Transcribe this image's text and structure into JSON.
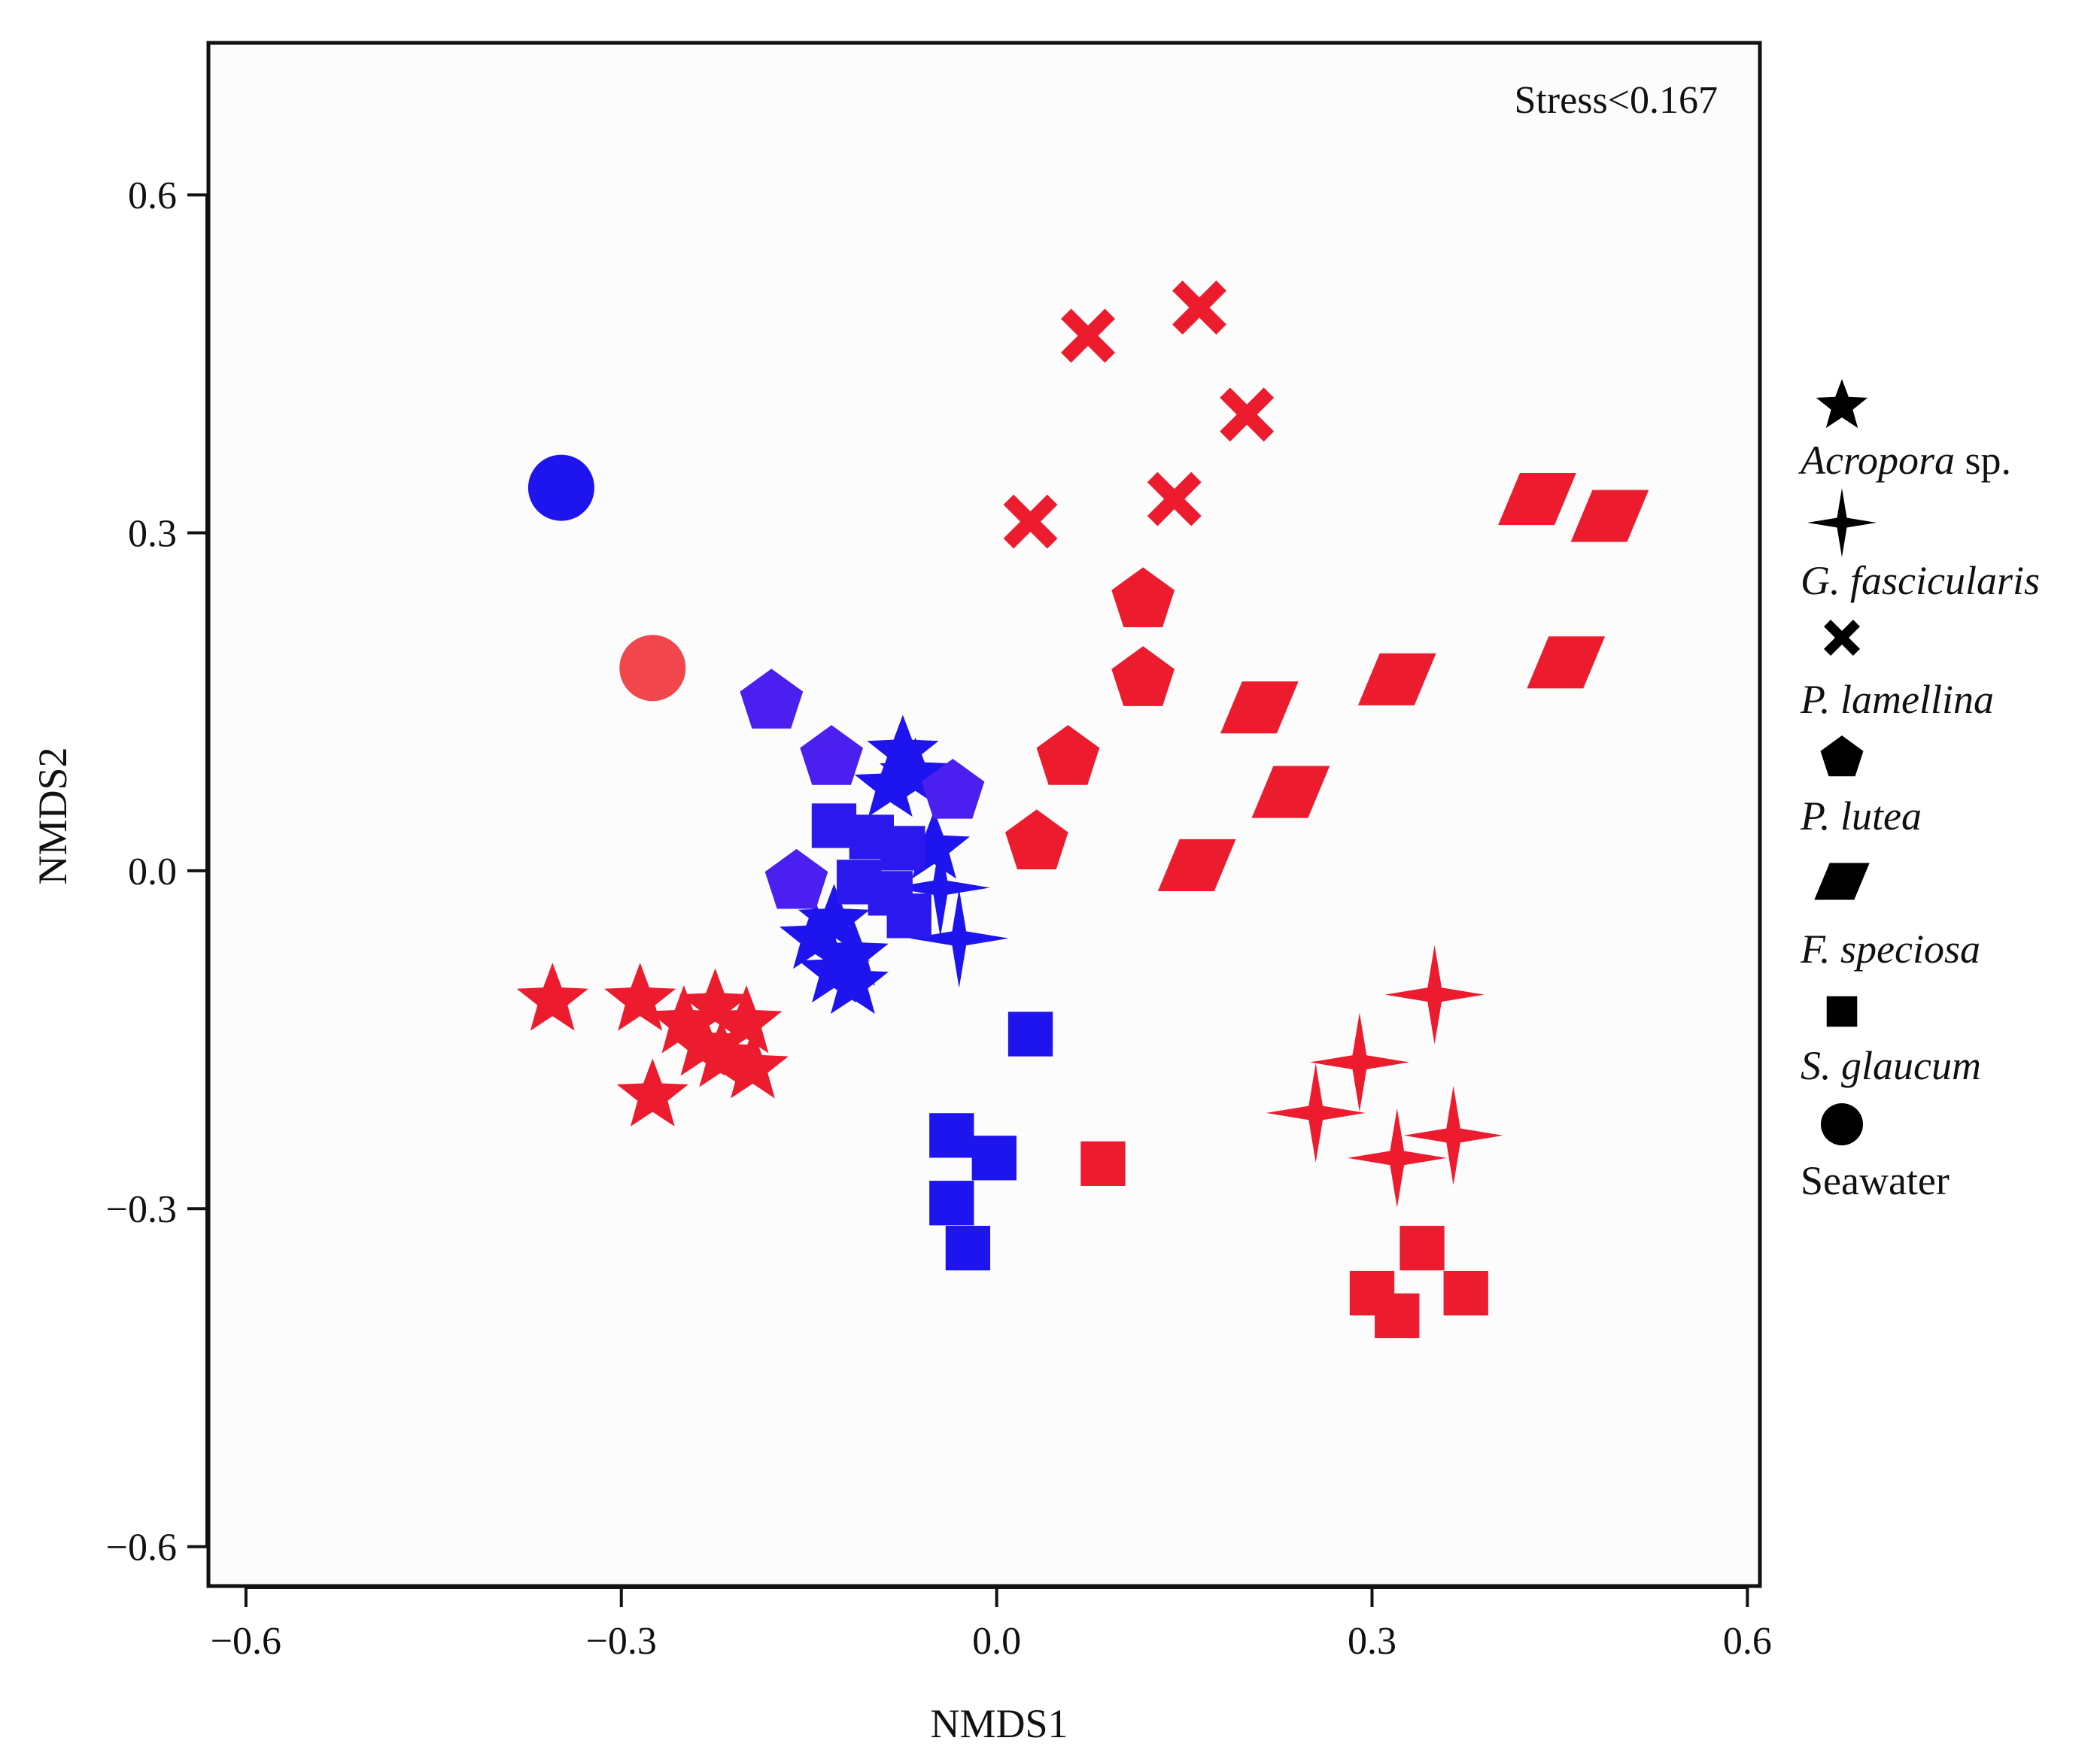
{
  "chart_data": {
    "type": "scatter",
    "title": "",
    "xlabel": "NMDS1",
    "ylabel": "NMDS2",
    "xlim": [
      -0.63,
      0.61
    ],
    "ylim": [
      -0.635,
      0.735
    ],
    "x_ticks": [
      -0.6,
      -0.3,
      0.0,
      0.3,
      0.6
    ],
    "y_ticks": [
      -0.6,
      -0.3,
      0.0,
      0.3,
      0.6
    ],
    "x_tick_labels": [
      "−0.6",
      "−0.3",
      "0.0",
      "0.3",
      "0.6"
    ],
    "y_tick_labels": [
      "−0.6",
      "−0.3",
      "0.0",
      "0.3",
      "0.6"
    ],
    "annotation": "Stress<0.167",
    "grid": false,
    "legend_position": "right",
    "colors": {
      "red": "#ec1c2e",
      "blue": "#1e14ee",
      "violet": "#4a1ff0",
      "light_red": "#f0464c"
    },
    "legend": [
      {
        "name_italic": "Acropora",
        "name_suffix": " sp.",
        "marker": "star5"
      },
      {
        "name_italic": "G. fascicularis",
        "name_suffix": "",
        "marker": "star4"
      },
      {
        "name_italic": "P. lamellina",
        "name_suffix": "",
        "marker": "cross"
      },
      {
        "name_italic": "P. lutea",
        "name_suffix": "",
        "marker": "pentagon"
      },
      {
        "name_italic": "F. speciosa",
        "name_suffix": "",
        "marker": "parallelogram"
      },
      {
        "name_italic": "S. glaucum",
        "name_suffix": "",
        "marker": "square"
      },
      {
        "name_italic": "",
        "name_suffix": "Seawater",
        "marker": "circle"
      }
    ],
    "series": [
      {
        "name": "Acropora sp.",
        "marker": "star5",
        "points": [
          {
            "x": -0.355,
            "y": -0.115,
            "color": "#ec1c2e"
          },
          {
            "x": -0.285,
            "y": -0.115,
            "color": "#ec1c2e"
          },
          {
            "x": -0.25,
            "y": -0.135,
            "color": "#ec1c2e"
          },
          {
            "x": -0.225,
            "y": -0.12,
            "color": "#ec1c2e"
          },
          {
            "x": -0.2,
            "y": -0.135,
            "color": "#ec1c2e"
          },
          {
            "x": -0.235,
            "y": -0.155,
            "color": "#ec1c2e"
          },
          {
            "x": -0.22,
            "y": -0.165,
            "color": "#ec1c2e"
          },
          {
            "x": -0.195,
            "y": -0.175,
            "color": "#ec1c2e"
          },
          {
            "x": -0.275,
            "y": -0.2,
            "color": "#ec1c2e"
          },
          {
            "x": -0.075,
            "y": 0.105,
            "color": "#1e14ee"
          },
          {
            "x": -0.065,
            "y": 0.085,
            "color": "#1e14ee"
          },
          {
            "x": -0.085,
            "y": 0.075,
            "color": "#1e14ee"
          },
          {
            "x": -0.05,
            "y": 0.02,
            "color": "#1e14ee"
          },
          {
            "x": -0.13,
            "y": -0.045,
            "color": "#1e14ee"
          },
          {
            "x": -0.145,
            "y": -0.06,
            "color": "#1e14ee"
          },
          {
            "x": -0.115,
            "y": -0.075,
            "color": "#1e14ee"
          },
          {
            "x": -0.13,
            "y": -0.09,
            "color": "#1e14ee"
          },
          {
            "x": -0.115,
            "y": -0.1,
            "color": "#1e14ee"
          }
        ]
      },
      {
        "name": "G. fascicularis",
        "marker": "star4",
        "points": [
          {
            "x": 0.35,
            "y": -0.11,
            "color": "#ec1c2e"
          },
          {
            "x": 0.29,
            "y": -0.17,
            "color": "#ec1c2e"
          },
          {
            "x": 0.255,
            "y": -0.215,
            "color": "#ec1c2e"
          },
          {
            "x": 0.32,
            "y": -0.255,
            "color": "#ec1c2e"
          },
          {
            "x": 0.365,
            "y": -0.235,
            "color": "#ec1c2e"
          },
          {
            "x": -0.045,
            "y": -0.015,
            "color": "#1e14ee"
          },
          {
            "x": -0.03,
            "y": -0.06,
            "color": "#1e14ee"
          }
        ]
      },
      {
        "name": "P. lamellina",
        "marker": "cross",
        "points": [
          {
            "x": 0.073,
            "y": 0.475,
            "color": "#ec1c2e"
          },
          {
            "x": 0.162,
            "y": 0.5,
            "color": "#ec1c2e"
          },
          {
            "x": 0.2,
            "y": 0.405,
            "color": "#ec1c2e"
          },
          {
            "x": 0.142,
            "y": 0.33,
            "color": "#ec1c2e"
          },
          {
            "x": 0.027,
            "y": 0.31,
            "color": "#ec1c2e"
          }
        ]
      },
      {
        "name": "P. lutea",
        "marker": "pentagon",
        "points": [
          {
            "x": 0.117,
            "y": 0.24,
            "color": "#ec1c2e"
          },
          {
            "x": 0.117,
            "y": 0.17,
            "color": "#ec1c2e"
          },
          {
            "x": 0.057,
            "y": 0.1,
            "color": "#ec1c2e"
          },
          {
            "x": 0.032,
            "y": 0.025,
            "color": "#ec1c2e"
          },
          {
            "x": -0.18,
            "y": 0.15,
            "color": "#4a1ff0"
          },
          {
            "x": -0.132,
            "y": 0.1,
            "color": "#4a1ff0"
          },
          {
            "x": -0.035,
            "y": 0.07,
            "color": "#4a1ff0"
          },
          {
            "x": -0.16,
            "y": -0.01,
            "color": "#4a1ff0"
          }
        ]
      },
      {
        "name": "F. speciosa",
        "marker": "parallelogram",
        "points": [
          {
            "x": 0.432,
            "y": 0.33,
            "color": "#ec1c2e"
          },
          {
            "x": 0.49,
            "y": 0.315,
            "color": "#ec1c2e"
          },
          {
            "x": 0.455,
            "y": 0.185,
            "color": "#ec1c2e"
          },
          {
            "x": 0.32,
            "y": 0.17,
            "color": "#ec1c2e"
          },
          {
            "x": 0.21,
            "y": 0.145,
            "color": "#ec1c2e"
          },
          {
            "x": 0.235,
            "y": 0.07,
            "color": "#ec1c2e"
          },
          {
            "x": 0.16,
            "y": 0.005,
            "color": "#ec1c2e"
          }
        ]
      },
      {
        "name": "S. glaucum",
        "marker": "square",
        "points": [
          {
            "x": -0.13,
            "y": 0.04,
            "color": "#2a18ee"
          },
          {
            "x": -0.1,
            "y": 0.03,
            "color": "#2a18ee"
          },
          {
            "x": -0.075,
            "y": 0.02,
            "color": "#2a18ee"
          },
          {
            "x": -0.11,
            "y": -0.01,
            "color": "#2a18ee"
          },
          {
            "x": -0.085,
            "y": -0.02,
            "color": "#2a18ee"
          },
          {
            "x": -0.07,
            "y": -0.04,
            "color": "#2a18ee"
          },
          {
            "x": 0.027,
            "y": -0.145,
            "color": "#1e14ee"
          },
          {
            "x": -0.036,
            "y": -0.235,
            "color": "#1e14ee"
          },
          {
            "x": -0.002,
            "y": -0.255,
            "color": "#1e14ee"
          },
          {
            "x": -0.036,
            "y": -0.295,
            "color": "#1e14ee"
          },
          {
            "x": -0.023,
            "y": -0.335,
            "color": "#1e14ee"
          },
          {
            "x": 0.085,
            "y": -0.26,
            "color": "#ec1c2e"
          },
          {
            "x": 0.34,
            "y": -0.335,
            "color": "#ec1c2e"
          },
          {
            "x": 0.3,
            "y": -0.375,
            "color": "#ec1c2e"
          },
          {
            "x": 0.32,
            "y": -0.395,
            "color": "#ec1c2e"
          },
          {
            "x": 0.375,
            "y": -0.375,
            "color": "#ec1c2e"
          }
        ]
      },
      {
        "name": "Seawater",
        "marker": "circle",
        "points": [
          {
            "x": -0.348,
            "y": 0.34,
            "color": "#1e14ee"
          },
          {
            "x": -0.275,
            "y": 0.18,
            "color": "#f0464c"
          }
        ]
      }
    ]
  }
}
